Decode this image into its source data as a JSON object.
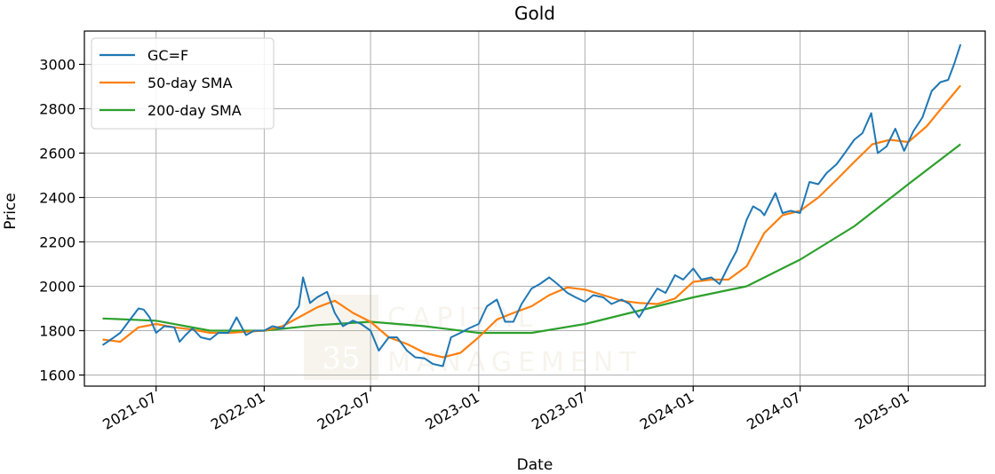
{
  "chart_data": {
    "type": "line",
    "title": "Gold",
    "xlabel": "Date",
    "ylabel": "Price",
    "xlim": [
      "2021-03-01",
      "2025-05-12"
    ],
    "ylim": [
      1550,
      3150
    ],
    "x_ticks": [
      "2021-07",
      "2022-01",
      "2022-07",
      "2023-01",
      "2023-07",
      "2024-01",
      "2024-07",
      "2025-01"
    ],
    "y_ticks": [
      1600,
      1800,
      2000,
      2200,
      2400,
      2600,
      2800,
      3000
    ],
    "grid": true,
    "legend_position": "top-left",
    "watermark": {
      "logo_number": "35",
      "text_line1": "CAPITAL",
      "text_line2": "MANAGEMENT"
    },
    "series": [
      {
        "name": "GC=F",
        "color": "#1f77b4",
        "x": [
          "2021-04-01",
          "2021-04-15",
          "2021-05-01",
          "2021-05-15",
          "2021-06-01",
          "2021-06-10",
          "2021-06-20",
          "2021-07-01",
          "2021-07-15",
          "2021-08-01",
          "2021-08-10",
          "2021-08-20",
          "2021-09-01",
          "2021-09-15",
          "2021-10-01",
          "2021-10-15",
          "2021-11-01",
          "2021-11-15",
          "2021-12-01",
          "2021-12-15",
          "2022-01-01",
          "2022-01-15",
          "2022-02-01",
          "2022-02-15",
          "2022-03-01",
          "2022-03-08",
          "2022-03-20",
          "2022-04-01",
          "2022-04-18",
          "2022-05-01",
          "2022-05-15",
          "2022-06-01",
          "2022-06-15",
          "2022-07-01",
          "2022-07-15",
          "2022-08-01",
          "2022-08-15",
          "2022-09-01",
          "2022-09-15",
          "2022-10-01",
          "2022-10-15",
          "2022-11-01",
          "2022-11-15",
          "2022-12-01",
          "2022-12-15",
          "2023-01-01",
          "2023-01-15",
          "2023-02-01",
          "2023-02-15",
          "2023-03-01",
          "2023-03-15",
          "2023-04-01",
          "2023-04-15",
          "2023-05-01",
          "2023-05-15",
          "2023-06-01",
          "2023-06-15",
          "2023-07-01",
          "2023-07-15",
          "2023-08-01",
          "2023-08-15",
          "2023-09-01",
          "2023-09-15",
          "2023-10-01",
          "2023-10-15",
          "2023-11-01",
          "2023-11-15",
          "2023-12-01",
          "2023-12-15",
          "2024-01-01",
          "2024-01-15",
          "2024-02-01",
          "2024-02-15",
          "2024-03-01",
          "2024-03-15",
          "2024-04-01",
          "2024-04-12",
          "2024-04-25",
          "2024-05-01",
          "2024-05-20",
          "2024-06-01",
          "2024-06-15",
          "2024-07-01",
          "2024-07-17",
          "2024-08-01",
          "2024-08-15",
          "2024-09-01",
          "2024-09-15",
          "2024-10-01",
          "2024-10-15",
          "2024-10-30",
          "2024-11-10",
          "2024-11-25",
          "2024-12-10",
          "2024-12-25",
          "2025-01-10",
          "2025-01-25",
          "2025-02-10",
          "2025-02-25",
          "2025-03-10",
          "2025-03-20",
          "2025-03-31"
        ],
        "values": [
          1735,
          1760,
          1790,
          1840,
          1900,
          1895,
          1860,
          1790,
          1820,
          1815,
          1750,
          1780,
          1810,
          1770,
          1760,
          1790,
          1790,
          1860,
          1780,
          1800,
          1800,
          1820,
          1810,
          1860,
          1910,
          2040,
          1925,
          1950,
          1975,
          1880,
          1820,
          1845,
          1830,
          1800,
          1710,
          1770,
          1770,
          1710,
          1680,
          1675,
          1650,
          1640,
          1770,
          1790,
          1810,
          1830,
          1910,
          1940,
          1840,
          1840,
          1920,
          1990,
          2010,
          2040,
          2010,
          1970,
          1950,
          1930,
          1960,
          1950,
          1920,
          1940,
          1920,
          1860,
          1920,
          1990,
          1970,
          2050,
          2030,
          2080,
          2030,
          2040,
          2010,
          2090,
          2160,
          2300,
          2360,
          2340,
          2320,
          2420,
          2330,
          2340,
          2330,
          2470,
          2460,
          2510,
          2550,
          2600,
          2660,
          2690,
          2780,
          2600,
          2630,
          2710,
          2610,
          2700,
          2760,
          2880,
          2920,
          2930,
          3000,
          3090
        ]
      },
      {
        "name": "50-day SMA",
        "color": "#ff7f0e",
        "x": [
          "2021-04-01",
          "2021-05-01",
          "2021-06-01",
          "2021-07-01",
          "2021-08-01",
          "2021-09-01",
          "2021-10-01",
          "2021-11-01",
          "2021-12-01",
          "2022-01-01",
          "2022-02-01",
          "2022-03-01",
          "2022-04-01",
          "2022-05-01",
          "2022-06-01",
          "2022-07-01",
          "2022-08-01",
          "2022-09-01",
          "2022-10-01",
          "2022-11-01",
          "2022-12-01",
          "2023-01-01",
          "2023-02-01",
          "2023-03-01",
          "2023-04-01",
          "2023-05-01",
          "2023-06-01",
          "2023-07-01",
          "2023-08-01",
          "2023-09-01",
          "2023-10-01",
          "2023-11-01",
          "2023-12-01",
          "2024-01-01",
          "2024-02-01",
          "2024-03-01",
          "2024-04-01",
          "2024-05-01",
          "2024-06-01",
          "2024-07-01",
          "2024-08-01",
          "2024-09-01",
          "2024-10-01",
          "2024-11-01",
          "2024-12-01",
          "2025-01-01",
          "2025-02-01",
          "2025-03-01",
          "2025-03-31"
        ],
        "values": [
          1760,
          1750,
          1815,
          1830,
          1815,
          1805,
          1790,
          1790,
          1795,
          1800,
          1820,
          1860,
          1905,
          1935,
          1880,
          1840,
          1770,
          1740,
          1700,
          1680,
          1700,
          1770,
          1850,
          1880,
          1910,
          1960,
          1995,
          1985,
          1960,
          1935,
          1925,
          1920,
          1945,
          2020,
          2030,
          2030,
          2090,
          2240,
          2320,
          2340,
          2400,
          2480,
          2560,
          2640,
          2660,
          2650,
          2720,
          2810,
          2905
        ]
      },
      {
        "name": "200-day SMA",
        "color": "#2ca02c",
        "x": [
          "2021-04-01",
          "2021-07-01",
          "2021-10-01",
          "2022-01-01",
          "2022-04-01",
          "2022-07-01",
          "2022-10-01",
          "2023-01-01",
          "2023-04-01",
          "2023-07-01",
          "2023-10-01",
          "2024-01-01",
          "2024-04-01",
          "2024-07-01",
          "2024-10-01",
          "2025-01-01",
          "2025-03-31"
        ],
        "values": [
          1855,
          1845,
          1800,
          1800,
          1825,
          1840,
          1820,
          1790,
          1790,
          1830,
          1890,
          1950,
          2000,
          2120,
          2270,
          2460,
          2640
        ]
      }
    ]
  }
}
